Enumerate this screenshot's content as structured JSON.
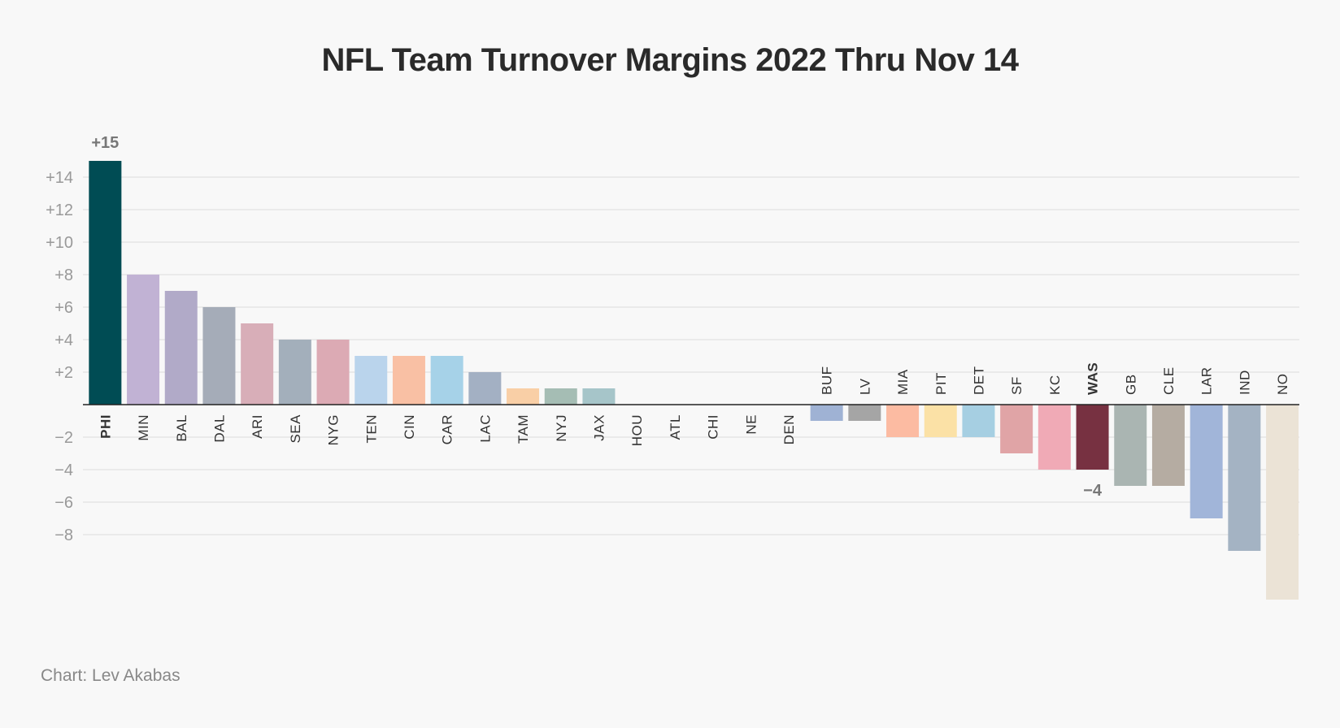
{
  "title": "NFL Team Turnover Margins 2022 Thru Nov 14",
  "credit": "Chart: Lev Akabas",
  "chart_data": {
    "type": "bar",
    "title": "NFL Team Turnover Margins 2022 Thru Nov 14",
    "xlabel": "",
    "ylabel": "",
    "ylim": [
      -12,
      16
    ],
    "grid": true,
    "y_ticks": [
      {
        "value": 14,
        "label": "+14"
      },
      {
        "value": 12,
        "label": "+12"
      },
      {
        "value": 10,
        "label": "+10"
      },
      {
        "value": 8,
        "label": "+8"
      },
      {
        "value": 6,
        "label": "+6"
      },
      {
        "value": 4,
        "label": "+4"
      },
      {
        "value": 2,
        "label": "+2"
      },
      {
        "value": -2,
        "label": "−2"
      },
      {
        "value": -4,
        "label": "−4"
      },
      {
        "value": -6,
        "label": "−6"
      },
      {
        "value": -8,
        "label": "−8"
      }
    ],
    "categories": [
      "PHI",
      "MIN",
      "BAL",
      "DAL",
      "ARI",
      "SEA",
      "NYG",
      "TEN",
      "CIN",
      "CAR",
      "LAC",
      "TAM",
      "NYJ",
      "JAX",
      "HOU",
      "ATL",
      "CHI",
      "NE",
      "DEN",
      "BUF",
      "LV",
      "MIA",
      "PIT",
      "DET",
      "SF",
      "KC",
      "WAS",
      "GB",
      "CLE",
      "LAR",
      "IND",
      "NO"
    ],
    "values": [
      15,
      8,
      7,
      6,
      5,
      4,
      4,
      3,
      3,
      3,
      2,
      1,
      1,
      1,
      0,
      0,
      0,
      0,
      0,
      -1,
      -1,
      -2,
      -2,
      -2,
      -3,
      -4,
      -4,
      -5,
      -5,
      -7,
      -9,
      -12
    ],
    "colors": [
      "#004c54",
      "#c1b2d4",
      "#b1aac8",
      "#a5acb8",
      "#d8aeb8",
      "#a3afbb",
      "#dcaab4",
      "#bad4ec",
      "#f9c0a4",
      "#a6d2e8",
      "#a3b0c3",
      "#f9cfa6",
      "#a5bdb4",
      "#a6c5c9",
      "#f8f8f8",
      "#f8f8f8",
      "#f8f8f8",
      "#f8f8f8",
      "#f8f8f8",
      "#9fb2d4",
      "#a5a5a5",
      "#fcbba2",
      "#fbe1a6",
      "#a6cfe2",
      "#e0a4a6",
      "#f0aab6",
      "#773141",
      "#aab5b2",
      "#b5aca2",
      "#a1b5d9",
      "#a4b3c3",
      "#ebe3d6"
    ],
    "highlighted": [
      "PHI",
      "WAS"
    ],
    "annotations": [
      {
        "category": "PHI",
        "text": "+15"
      },
      {
        "category": "WAS",
        "text": "−4"
      }
    ]
  }
}
